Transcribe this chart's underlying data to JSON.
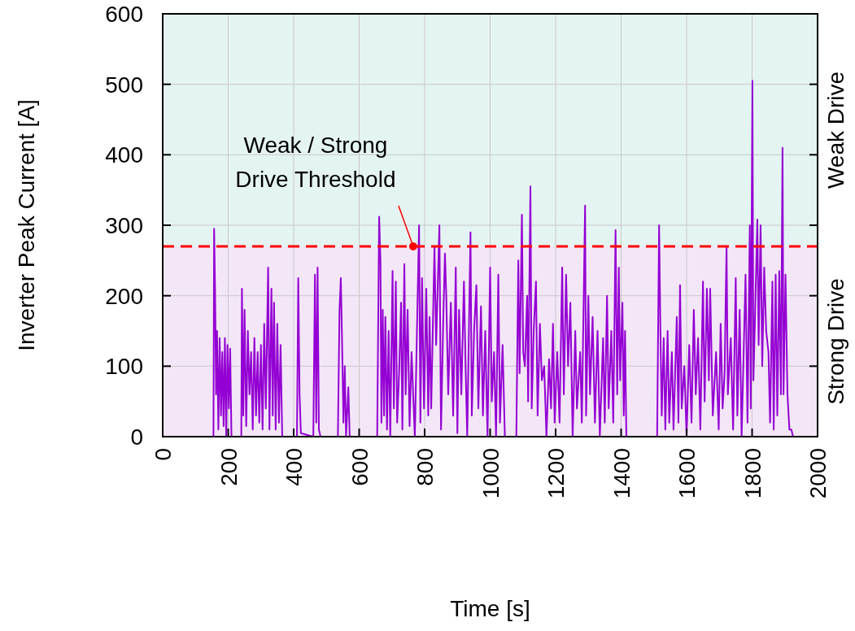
{
  "chart_data": {
    "type": "line",
    "xlabel": "Time [s]",
    "ylabel": "Inverter Peak Current [A]",
    "xlim": [
      0,
      2000
    ],
    "xticks": [
      0,
      200,
      400,
      600,
      800,
      1000,
      1200,
      1400,
      1600,
      1800,
      2000
    ],
    "ylim": [
      0,
      600
    ],
    "yticks": [
      0,
      100,
      200,
      300,
      400,
      500,
      600
    ],
    "grid": true,
    "line_style": "solid",
    "bands": [
      {
        "axis": "y",
        "from": 270,
        "to": 600,
        "label": "Weak Drive",
        "color": "#e4f4f2"
      },
      {
        "axis": "y",
        "from": 0,
        "to": 270,
        "label": "Strong Drive",
        "color": "#f3e6f7"
      }
    ],
    "ref_lines": [
      {
        "axis": "y",
        "value": 270,
        "color": "#ff0000",
        "line_style": "dashed"
      }
    ],
    "annotations": [
      {
        "text": "Weak / Strong\nDrive Threshold",
        "x": 765,
        "y": 270
      }
    ],
    "series": [
      {
        "color": "#9400d3",
        "x": [
          150,
          155,
          157,
          160,
          163,
          166,
          170,
          174,
          178,
          182,
          186,
          190,
          194,
          198,
          202,
          206,
          210,
          240,
          242,
          246,
          250,
          255,
          260,
          265,
          270,
          275,
          280,
          285,
          290,
          295,
          300,
          305,
          310,
          315,
          322,
          326,
          332,
          336,
          340,
          345,
          350,
          355,
          360,
          365,
          410,
          414,
          418,
          422,
          460,
          465,
          469,
          473,
          477,
          482,
          535,
          540,
          544,
          548,
          552,
          556,
          560,
          567,
          571,
          655,
          661,
          665,
          668,
          672,
          676,
          680,
          685,
          690,
          695,
          702,
          706,
          712,
          716,
          722,
          728,
          732,
          738,
          742,
          748,
          754,
          760,
          770,
          783,
          787,
          792,
          798,
          805,
          811,
          815,
          820,
          830,
          835,
          845,
          850,
          857,
          862,
          866,
          872,
          880,
          887,
          895,
          900,
          905,
          912,
          920,
          925,
          930,
          940,
          944,
          951,
          958,
          964,
          972,
          978,
          985,
          992,
          1000,
          1005,
          1012,
          1018,
          1025,
          1030,
          1038,
          1045,
          1080,
          1086,
          1090,
          1097,
          1101,
          1106,
          1113,
          1116,
          1123,
          1127,
          1133,
          1140,
          1145,
          1152,
          1158,
          1165,
          1172,
          1180,
          1186,
          1192,
          1197,
          1205,
          1212,
          1220,
          1225,
          1232,
          1238,
          1245,
          1252,
          1260,
          1265,
          1275,
          1280,
          1290,
          1293,
          1300,
          1305,
          1313,
          1320,
          1328,
          1335,
          1345,
          1350,
          1357,
          1362,
          1370,
          1376,
          1383,
          1388,
          1393,
          1397,
          1404,
          1408,
          1412,
          1416,
          1510,
          1516,
          1520,
          1524,
          1530,
          1535,
          1542,
          1547,
          1555,
          1560,
          1570,
          1575,
          1580,
          1585,
          1593,
          1600,
          1608,
          1615,
          1622,
          1628,
          1635,
          1642,
          1650,
          1655,
          1662,
          1668,
          1672,
          1680,
          1690,
          1698,
          1704,
          1710,
          1716,
          1722,
          1726,
          1735,
          1742,
          1750,
          1755,
          1762,
          1768,
          1780,
          1786,
          1793,
          1796,
          1801,
          1804,
          1809,
          1816,
          1820,
          1826,
          1831,
          1837,
          1843,
          1850,
          1855,
          1862,
          1866,
          1872,
          1877,
          1883,
          1888,
          1893,
          1896,
          1902,
          1908,
          1914,
          1920,
          1925
        ],
        "values": [
          0,
          0,
          295,
          205,
          60,
          150,
          10,
          140,
          30,
          120,
          15,
          140,
          0,
          130,
          40,
          125,
          0,
          0,
          210,
          30,
          180,
          15,
          150,
          60,
          120,
          10,
          140,
          30,
          120,
          20,
          130,
          10,
          160,
          40,
          240,
          10,
          210,
          30,
          190,
          10,
          160,
          20,
          130,
          0,
          0,
          225,
          60,
          5,
          0,
          230,
          20,
          240,
          10,
          0,
          0,
          180,
          225,
          130,
          20,
          100,
          0,
          70,
          0,
          0,
          312,
          250,
          20,
          180,
          30,
          170,
          10,
          150,
          0,
          235,
          40,
          220,
          20,
          90,
          190,
          10,
          245,
          60,
          180,
          15,
          120,
          0,
          300,
          20,
          225,
          40,
          210,
          30,
          170,
          40,
          270,
          130,
          300,
          10,
          170,
          260,
          200,
          60,
          190,
          30,
          240,
          5,
          180,
          60,
          220,
          100,
          0,
          290,
          30,
          150,
          215,
          40,
          185,
          30,
          150,
          0,
          240,
          50,
          120,
          0,
          230,
          20,
          130,
          0,
          0,
          250,
          90,
          315,
          120,
          100,
          200,
          50,
          355,
          40,
          150,
          220,
          30,
          160,
          80,
          100,
          0,
          110,
          40,
          160,
          20,
          120,
          20,
          240,
          60,
          230,
          100,
          190,
          0,
          150,
          40,
          120,
          20,
          328,
          30,
          200,
          60,
          170,
          20,
          150,
          0,
          140,
          20,
          200,
          40,
          150,
          20,
          293,
          60,
          240,
          80,
          190,
          30,
          150,
          0,
          0,
          300,
          150,
          30,
          140,
          10,
          150,
          20,
          120,
          10,
          170,
          20,
          215,
          40,
          100,
          0,
          130,
          20,
          180,
          60,
          140,
          10,
          220,
          50,
          210,
          80,
          210,
          30,
          120,
          10,
          160,
          40,
          90,
          270,
          60,
          140,
          10,
          225,
          30,
          180,
          0,
          230,
          20,
          300,
          40,
          505,
          80,
          170,
          308,
          130,
          300,
          100,
          240,
          150,
          120,
          20,
          220,
          10,
          230,
          30,
          235,
          60,
          410,
          60,
          230,
          60,
          10,
          10,
          0
        ]
      }
    ]
  }
}
